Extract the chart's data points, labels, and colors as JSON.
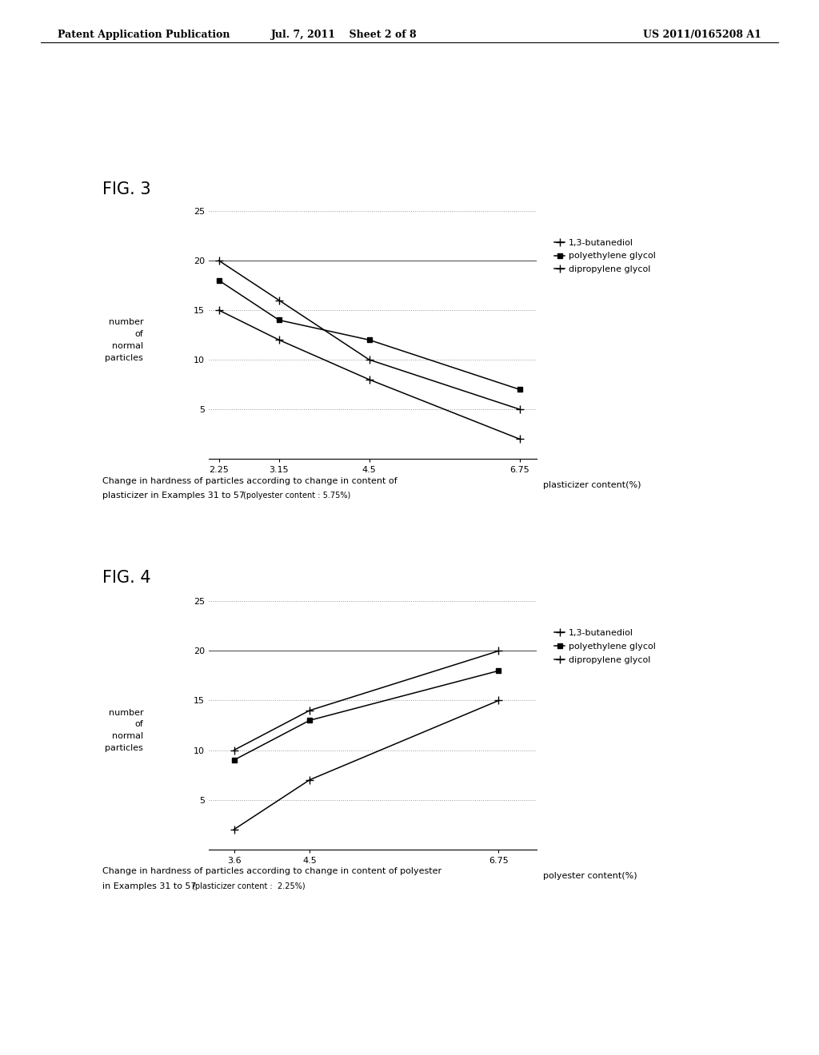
{
  "header_left": "Patent Application Publication",
  "header_center": "Jul. 7, 2011    Sheet 2 of 8",
  "header_right": "US 2011/0165208 A1",
  "fig3": {
    "title": "FIG. 3",
    "x": [
      2.25,
      3.15,
      4.5,
      6.75
    ],
    "xlabel": "plasticizer content(%)",
    "ylabel_lines": [
      "number",
      "of",
      "normal",
      "particles"
    ],
    "ylim": [
      0,
      25
    ],
    "yticks": [
      0,
      5,
      10,
      15,
      20,
      25
    ],
    "solid_yticks": [
      20
    ],
    "series": [
      {
        "label": "1,3-butanediol",
        "y": [
          20,
          16,
          10,
          5
        ],
        "marker": "+",
        "ms": 7
      },
      {
        "label": "polyethylene glycol",
        "y": [
          18,
          14,
          12,
          7
        ],
        "marker": "s",
        "ms": 5
      },
      {
        "label": "dipropylene glycol",
        "y": [
          15,
          12,
          8,
          2
        ],
        "marker": "+",
        "ms": 7
      }
    ],
    "caption_main": "Change in hardness of particles according to change in content of",
    "caption_sub": "plasticizer in Examples 31 to 57 ",
    "caption_small": "(polyester content : 5.75%)"
  },
  "fig4": {
    "title": "FIG. 4",
    "x": [
      3.6,
      4.5,
      6.75
    ],
    "xlabel": "polyester content(%)",
    "ylabel_lines": [
      "number",
      "of",
      "normal",
      "particles"
    ],
    "ylim": [
      0,
      25
    ],
    "yticks": [
      0,
      5,
      10,
      15,
      20,
      25
    ],
    "solid_yticks": [
      20
    ],
    "series": [
      {
        "label": "1,3-butanediol",
        "y": [
          10,
          14,
          20
        ],
        "marker": "+",
        "ms": 7
      },
      {
        "label": "polyethylene glycol",
        "y": [
          9,
          13,
          18
        ],
        "marker": "s",
        "ms": 5
      },
      {
        "label": "dipropylene glycol",
        "y": [
          2,
          7,
          15
        ],
        "marker": "+",
        "ms": 7
      }
    ],
    "caption_main": "Change in hardness of particles according to change in content of polyester",
    "caption_sub": "in Examples 31 to 57 ",
    "caption_small": "(plasticizer content :  2.25%)"
  },
  "line_color": "#000000",
  "bg_color": "#ffffff",
  "grid_dotted_color": "#999999",
  "grid_solid_color": "#555555",
  "font_size_axis_tick": 8,
  "font_size_ylabel": 8,
  "font_size_xlabel": 8,
  "font_size_header": 9,
  "font_size_fig_title": 15,
  "font_size_caption_main": 8,
  "font_size_caption_small": 7,
  "font_size_legend": 8
}
